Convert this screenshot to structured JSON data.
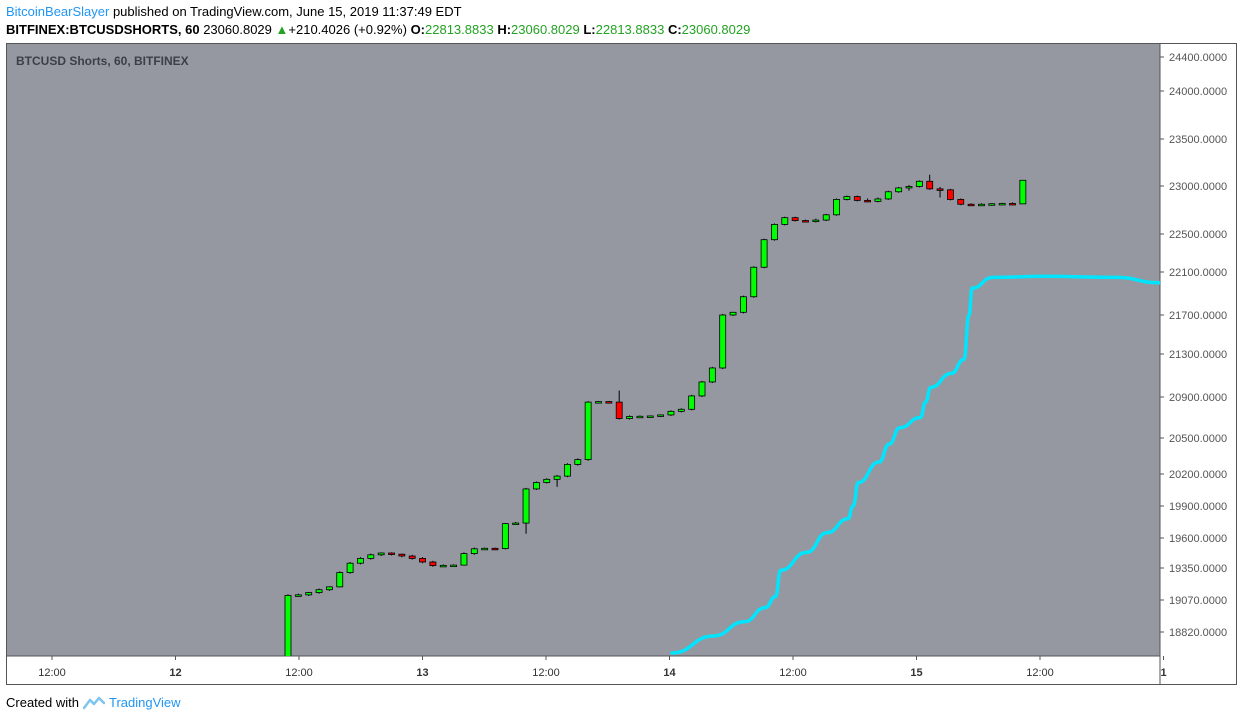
{
  "header": {
    "author": "BitcoinBearSlayer",
    "published": "published on TradingView.com, June 15, 2019 11:37:49 EDT",
    "symbol": "BITFINEX:BTCUSDSHORTS, 60",
    "last": "23060.8029",
    "change": "+210.4026 (+0.92%)",
    "o_label": "O:",
    "o_value": "22813.8833",
    "h_label": "H:",
    "h_value": "23060.8029",
    "l_label": "L:",
    "l_value": "22813.8833",
    "c_label": "C:",
    "c_value": "23060.8029"
  },
  "footer": {
    "created_with": "Created with",
    "brand": "TradingView"
  },
  "chart_data": {
    "type": "candlestick",
    "title": "BTCUSD Shorts, 60, BITFINEX",
    "background": "#9598a1",
    "up_color": "#00ff00",
    "down_color": "#ff0000",
    "line_color": "#00e5ff",
    "y_ticks": [
      "24400.0000",
      "24000.0000",
      "23500.0000",
      "23000.0000",
      "22500.0000",
      "22100.0000",
      "21700.0000",
      "21300.0000",
      "20900.0000",
      "20500.0000",
      "20200.0000",
      "19900.0000",
      "19600.0000",
      "19350.0000",
      "19070.0000",
      "18820.0000"
    ],
    "x_ticks": [
      "12:00",
      "12",
      "12:00",
      "13",
      "12:00",
      "14",
      "12:00",
      "15",
      "12:00",
      "1"
    ],
    "candles": [
      {
        "o": 18400,
        "h": 19120,
        "l": 18400,
        "c": 19110
      },
      {
        "o": 19110,
        "h": 19125,
        "l": 19100,
        "c": 19115
      },
      {
        "o": 19115,
        "h": 19140,
        "l": 19105,
        "c": 19135
      },
      {
        "o": 19135,
        "h": 19170,
        "l": 19125,
        "c": 19160
      },
      {
        "o": 19160,
        "h": 19190,
        "l": 19150,
        "c": 19185
      },
      {
        "o": 19185,
        "h": 19320,
        "l": 19180,
        "c": 19310
      },
      {
        "o": 19310,
        "h": 19400,
        "l": 19300,
        "c": 19390
      },
      {
        "o": 19390,
        "h": 19440,
        "l": 19380,
        "c": 19430
      },
      {
        "o": 19430,
        "h": 19470,
        "l": 19420,
        "c": 19460
      },
      {
        "o": 19460,
        "h": 19480,
        "l": 19450,
        "c": 19475
      },
      {
        "o": 19475,
        "h": 19480,
        "l": 19455,
        "c": 19465
      },
      {
        "o": 19465,
        "h": 19470,
        "l": 19440,
        "c": 19450
      },
      {
        "o": 19450,
        "h": 19460,
        "l": 19420,
        "c": 19430
      },
      {
        "o": 19430,
        "h": 19440,
        "l": 19390,
        "c": 19400
      },
      {
        "o": 19400,
        "h": 19410,
        "l": 19360,
        "c": 19370
      },
      {
        "o": 19370,
        "h": 19380,
        "l": 19360,
        "c": 19372
      },
      {
        "o": 19372,
        "h": 19380,
        "l": 19360,
        "c": 19374
      },
      {
        "o": 19374,
        "h": 19480,
        "l": 19370,
        "c": 19470
      },
      {
        "o": 19470,
        "h": 19520,
        "l": 19460,
        "c": 19510
      },
      {
        "o": 19510,
        "h": 19520,
        "l": 19500,
        "c": 19514
      },
      {
        "o": 19514,
        "h": 19520,
        "l": 19505,
        "c": 19512
      },
      {
        "o": 19512,
        "h": 19740,
        "l": 19505,
        "c": 19735
      },
      {
        "o": 19735,
        "h": 19750,
        "l": 19725,
        "c": 19740
      },
      {
        "o": 19740,
        "h": 20070,
        "l": 19640,
        "c": 20060
      },
      {
        "o": 20060,
        "h": 20130,
        "l": 20050,
        "c": 20120
      },
      {
        "o": 20120,
        "h": 20160,
        "l": 20110,
        "c": 20150
      },
      {
        "o": 20150,
        "h": 20190,
        "l": 20080,
        "c": 20180
      },
      {
        "o": 20180,
        "h": 20290,
        "l": 20170,
        "c": 20280
      },
      {
        "o": 20280,
        "h": 20330,
        "l": 20270,
        "c": 20320
      },
      {
        "o": 20320,
        "h": 20860,
        "l": 20310,
        "c": 20850
      },
      {
        "o": 20850,
        "h": 20860,
        "l": 20845,
        "c": 20855
      },
      {
        "o": 20855,
        "h": 20860,
        "l": 20845,
        "c": 20850
      },
      {
        "o": 20850,
        "h": 20960,
        "l": 20680,
        "c": 20690
      },
      {
        "o": 20690,
        "h": 20720,
        "l": 20680,
        "c": 20710
      },
      {
        "o": 20710,
        "h": 20720,
        "l": 20700,
        "c": 20712
      },
      {
        "o": 20712,
        "h": 20720,
        "l": 20700,
        "c": 20715
      },
      {
        "o": 20715,
        "h": 20730,
        "l": 20705,
        "c": 20725
      },
      {
        "o": 20725,
        "h": 20770,
        "l": 20715,
        "c": 20760
      },
      {
        "o": 20760,
        "h": 20790,
        "l": 20750,
        "c": 20780
      },
      {
        "o": 20780,
        "h": 20920,
        "l": 20770,
        "c": 20910
      },
      {
        "o": 20910,
        "h": 21050,
        "l": 20900,
        "c": 21040
      },
      {
        "o": 21040,
        "h": 21180,
        "l": 21030,
        "c": 21170
      },
      {
        "o": 21170,
        "h": 21710,
        "l": 21160,
        "c": 21700
      },
      {
        "o": 21700,
        "h": 21730,
        "l": 21690,
        "c": 21725
      },
      {
        "o": 21725,
        "h": 21880,
        "l": 21715,
        "c": 21870
      },
      {
        "o": 21870,
        "h": 22160,
        "l": 21860,
        "c": 22150
      },
      {
        "o": 22150,
        "h": 22450,
        "l": 22140,
        "c": 22440
      },
      {
        "o": 22440,
        "h": 22610,
        "l": 22430,
        "c": 22600
      },
      {
        "o": 22600,
        "h": 22680,
        "l": 22590,
        "c": 22670
      },
      {
        "o": 22670,
        "h": 22680,
        "l": 22630,
        "c": 22640
      },
      {
        "o": 22640,
        "h": 22650,
        "l": 22620,
        "c": 22630
      },
      {
        "o": 22630,
        "h": 22660,
        "l": 22620,
        "c": 22645
      },
      {
        "o": 22645,
        "h": 22710,
        "l": 22635,
        "c": 22700
      },
      {
        "o": 22700,
        "h": 22870,
        "l": 22690,
        "c": 22860
      },
      {
        "o": 22860,
        "h": 22900,
        "l": 22850,
        "c": 22890
      },
      {
        "o": 22890,
        "h": 22900,
        "l": 22840,
        "c": 22850
      },
      {
        "o": 22850,
        "h": 22870,
        "l": 22830,
        "c": 22840
      },
      {
        "o": 22840,
        "h": 22880,
        "l": 22830,
        "c": 22865
      },
      {
        "o": 22865,
        "h": 22950,
        "l": 22855,
        "c": 22940
      },
      {
        "o": 22940,
        "h": 22990,
        "l": 22930,
        "c": 22980
      },
      {
        "o": 22980,
        "h": 23010,
        "l": 22950,
        "c": 22995
      },
      {
        "o": 22995,
        "h": 23060,
        "l": 22985,
        "c": 23050
      },
      {
        "o": 23050,
        "h": 23120,
        "l": 22960,
        "c": 22970
      },
      {
        "o": 22970,
        "h": 22990,
        "l": 22880,
        "c": 22960
      },
      {
        "o": 22960,
        "h": 22970,
        "l": 22850,
        "c": 22860
      },
      {
        "o": 22860,
        "h": 22870,
        "l": 22800,
        "c": 22810
      },
      {
        "o": 22810,
        "h": 22820,
        "l": 22800,
        "c": 22808
      },
      {
        "o": 22808,
        "h": 22820,
        "l": 22800,
        "c": 22810
      },
      {
        "o": 22810,
        "h": 22820,
        "l": 22805,
        "c": 22815
      },
      {
        "o": 22815,
        "h": 22825,
        "l": 22805,
        "c": 22818
      },
      {
        "o": 22818,
        "h": 22830,
        "l": 22800,
        "c": 22813.8833
      },
      {
        "o": 22813.8833,
        "h": 23060.8029,
        "l": 22813.8833,
        "c": 23060.8029
      }
    ],
    "line": [
      [
        0,
        18610
      ],
      [
        4,
        18780
      ],
      [
        7,
        18900
      ],
      [
        9,
        19010
      ],
      [
        10,
        19100
      ],
      [
        10.5,
        19330
      ],
      [
        13,
        19480
      ],
      [
        15,
        19650
      ],
      [
        17,
        19780
      ],
      [
        17.5,
        19900
      ],
      [
        18,
        20120
      ],
      [
        20,
        20300
      ],
      [
        21,
        20450
      ],
      [
        22,
        20600
      ],
      [
        24,
        20700
      ],
      [
        24.5,
        20850
      ],
      [
        25,
        20990
      ],
      [
        27,
        21120
      ],
      [
        28.2,
        21250
      ],
      [
        28.7,
        21700
      ],
      [
        29,
        21950
      ],
      [
        31,
        22050
      ],
      [
        36,
        22060
      ],
      [
        43,
        22050
      ],
      [
        47,
        22000
      ],
      [
        51,
        21960
      ]
    ]
  }
}
